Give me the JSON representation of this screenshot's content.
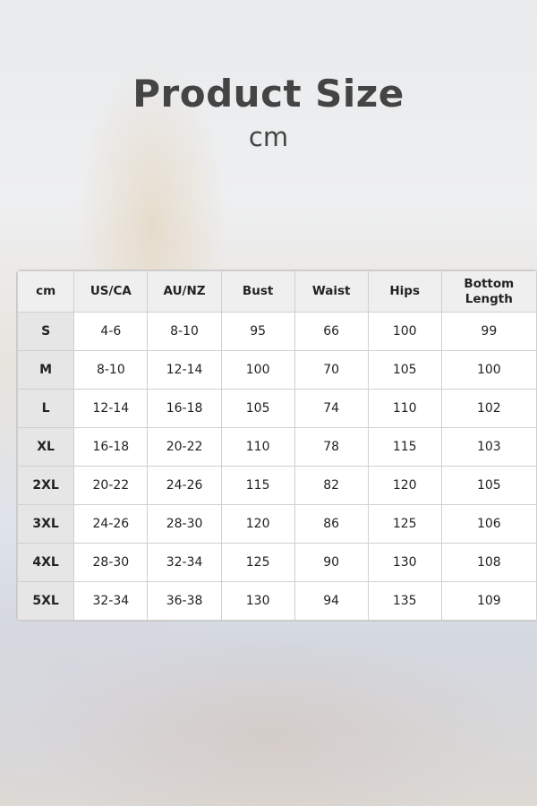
{
  "title": "Product Size",
  "unit": "cm",
  "table": {
    "headers": [
      "cm",
      "US/CA",
      "AU/NZ",
      "Bust",
      "Waist",
      "Hips",
      "Bottom Length"
    ],
    "rows": [
      [
        "S",
        "4-6",
        "8-10",
        "95",
        "66",
        "100",
        "99"
      ],
      [
        "M",
        "8-10",
        "12-14",
        "100",
        "70",
        "105",
        "100"
      ],
      [
        "L",
        "12-14",
        "16-18",
        "105",
        "74",
        "110",
        "102"
      ],
      [
        "XL",
        "16-18",
        "20-22",
        "110",
        "78",
        "115",
        "103"
      ],
      [
        "2XL",
        "20-22",
        "24-26",
        "115",
        "82",
        "120",
        "105"
      ],
      [
        "3XL",
        "24-26",
        "28-30",
        "120",
        "86",
        "125",
        "106"
      ],
      [
        "4XL",
        "28-30",
        "32-34",
        "125",
        "90",
        "130",
        "108"
      ],
      [
        "5XL",
        "32-34",
        "36-38",
        "130",
        "94",
        "135",
        "109"
      ]
    ]
  }
}
